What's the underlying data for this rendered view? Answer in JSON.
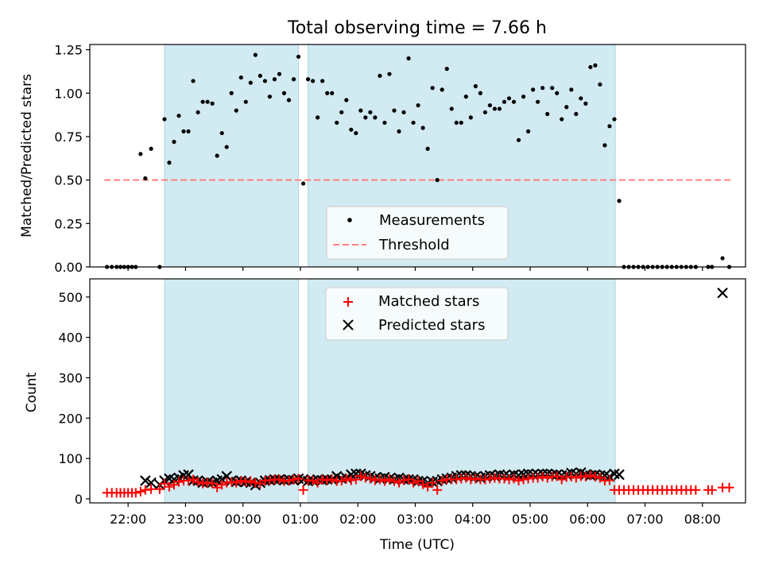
{
  "title": "Total observing time = 7.66 h",
  "xlabel": "Time (UTC)",
  "colors": {
    "shade": "#add8e6",
    "measurement": "#000000",
    "threshold": "#ff7f7f",
    "matched": "#ff0000",
    "predicted": "#000000"
  },
  "chart_data": [
    {
      "type": "scatter",
      "ylabel": "Matched/Predicted stars",
      "ylim": [
        0,
        1.28
      ],
      "yticks": [
        0.0,
        0.25,
        0.5,
        0.75,
        1.0,
        1.25
      ],
      "ytick_labels": [
        "0.00",
        "0.25",
        "0.50",
        "0.75",
        "1.00",
        "1.25"
      ],
      "grid": false,
      "shaded_intervals": [
        [
          "22:38",
          "00:58"
        ],
        [
          "01:08",
          "06:29"
        ]
      ],
      "threshold": {
        "value": 0.5,
        "x_range": [
          "21:35",
          "08:30"
        ]
      },
      "legend": {
        "position": "bottom-center",
        "entries": [
          "Measurements",
          "Threshold"
        ]
      },
      "series": [
        {
          "name": "Measurements",
          "x": [
            "21:38",
            "21:43",
            "21:48",
            "21:52",
            "21:56",
            "22:00",
            "22:04",
            "22:08",
            "22:13",
            "22:18",
            "22:24",
            "22:33",
            "22:38",
            "22:43",
            "22:48",
            "22:53",
            "22:58",
            "23:03",
            "23:08",
            "23:13",
            "23:18",
            "23:23",
            "23:28",
            "23:33",
            "23:38",
            "23:43",
            "23:48",
            "23:53",
            "23:58",
            "00:03",
            "00:08",
            "00:13",
            "00:18",
            "00:23",
            "00:28",
            "00:33",
            "00:38",
            "00:43",
            "00:48",
            "00:53",
            "00:58",
            "01:03",
            "01:08",
            "01:13",
            "01:18",
            "01:23",
            "01:28",
            "01:33",
            "01:38",
            "01:43",
            "01:48",
            "01:53",
            "01:58",
            "02:03",
            "02:08",
            "02:13",
            "02:18",
            "02:23",
            "02:28",
            "02:33",
            "02:38",
            "02:43",
            "02:48",
            "02:53",
            "02:58",
            "03:03",
            "03:08",
            "03:13",
            "03:18",
            "03:23",
            "03:28",
            "03:33",
            "03:38",
            "03:43",
            "03:48",
            "03:53",
            "03:58",
            "04:03",
            "04:08",
            "04:13",
            "04:18",
            "04:23",
            "04:28",
            "04:33",
            "04:38",
            "04:43",
            "04:48",
            "04:53",
            "04:58",
            "05:03",
            "05:08",
            "05:13",
            "05:18",
            "05:23",
            "05:28",
            "05:33",
            "05:38",
            "05:43",
            "05:48",
            "05:53",
            "05:58",
            "06:03",
            "06:08",
            "06:13",
            "06:18",
            "06:23",
            "06:28",
            "06:33",
            "06:38",
            "06:43",
            "06:48",
            "06:53",
            "06:58",
            "07:03",
            "07:08",
            "07:13",
            "07:18",
            "07:23",
            "07:28",
            "07:33",
            "07:38",
            "07:43",
            "07:48",
            "07:53",
            "08:06",
            "08:10",
            "08:21",
            "08:28"
          ],
          "y": [
            0.0,
            0.0,
            0.0,
            0.0,
            0.0,
            0.0,
            0.0,
            0.0,
            0.65,
            0.51,
            0.68,
            0.0,
            0.85,
            0.6,
            0.72,
            0.87,
            0.78,
            0.78,
            1.07,
            0.89,
            0.95,
            0.95,
            0.94,
            0.64,
            0.77,
            0.69,
            1.0,
            0.9,
            1.09,
            0.95,
            1.06,
            1.22,
            1.1,
            1.07,
            0.98,
            1.08,
            1.11,
            1.0,
            0.96,
            1.08,
            1.21,
            0.48,
            1.08,
            1.07,
            0.86,
            1.07,
            1.0,
            1.0,
            0.83,
            0.89,
            0.96,
            0.79,
            0.77,
            0.9,
            0.86,
            0.89,
            0.86,
            1.1,
            0.83,
            1.11,
            0.9,
            0.78,
            0.89,
            1.2,
            0.83,
            0.93,
            0.8,
            0.68,
            1.03,
            0.5,
            1.02,
            1.14,
            0.91,
            0.83,
            0.83,
            0.98,
            0.86,
            1.04,
            1.0,
            0.89,
            0.93,
            0.91,
            0.91,
            0.95,
            0.97,
            0.95,
            0.73,
            0.98,
            0.78,
            1.02,
            0.95,
            1.03,
            0.88,
            1.03,
            1.0,
            0.85,
            0.92,
            1.02,
            0.88,
            0.97,
            0.94,
            1.15,
            1.16,
            1.05,
            0.7,
            0.81,
            0.85,
            0.38,
            0.0,
            0.0,
            0.0,
            0.0,
            0.0,
            0.0,
            0.0,
            0.0,
            0.0,
            0.0,
            0.0,
            0.0,
            0.0,
            0.0,
            0.0,
            0.0,
            0.0,
            0.0,
            0.05,
            0.0
          ]
        }
      ]
    },
    {
      "type": "scatter",
      "ylabel": "Count",
      "ylim": [
        -10,
        545
      ],
      "yticks": [
        0,
        100,
        200,
        300,
        400,
        500
      ],
      "ytick_labels": [
        "0",
        "100",
        "200",
        "300",
        "400",
        "500"
      ],
      "grid": false,
      "shaded_intervals": [
        [
          "22:38",
          "00:58"
        ],
        [
          "01:08",
          "06:29"
        ]
      ],
      "legend": {
        "position": "top-center",
        "entries": [
          "Matched stars",
          "Predicted stars"
        ]
      },
      "series": [
        {
          "name": "Matched stars",
          "x": [
            "21:38",
            "21:43",
            "21:48",
            "21:52",
            "21:56",
            "22:00",
            "22:04",
            "22:08",
            "22:13",
            "22:18",
            "22:24",
            "22:33",
            "22:38",
            "22:43",
            "22:48",
            "22:53",
            "22:58",
            "23:03",
            "23:08",
            "23:13",
            "23:18",
            "23:23",
            "23:28",
            "23:33",
            "23:38",
            "23:43",
            "23:48",
            "23:53",
            "23:58",
            "00:03",
            "00:08",
            "00:13",
            "00:18",
            "00:23",
            "00:28",
            "00:33",
            "00:38",
            "00:43",
            "00:48",
            "00:53",
            "00:58",
            "01:03",
            "01:08",
            "01:13",
            "01:18",
            "01:23",
            "01:28",
            "01:33",
            "01:38",
            "01:43",
            "01:48",
            "01:53",
            "01:58",
            "02:03",
            "02:08",
            "02:13",
            "02:18",
            "02:23",
            "02:28",
            "02:33",
            "02:38",
            "02:43",
            "02:48",
            "02:53",
            "02:58",
            "03:03",
            "03:08",
            "03:13",
            "03:18",
            "03:23",
            "03:28",
            "03:33",
            "03:38",
            "03:43",
            "03:48",
            "03:53",
            "03:58",
            "04:03",
            "04:08",
            "04:13",
            "04:18",
            "04:23",
            "04:28",
            "04:33",
            "04:38",
            "04:43",
            "04:48",
            "04:53",
            "04:58",
            "05:03",
            "05:08",
            "05:13",
            "05:18",
            "05:23",
            "05:28",
            "05:33",
            "05:38",
            "05:43",
            "05:48",
            "05:53",
            "05:58",
            "06:03",
            "06:08",
            "06:13",
            "06:18",
            "06:23",
            "06:28",
            "06:33",
            "06:38",
            "06:43",
            "06:48",
            "06:53",
            "06:58",
            "07:03",
            "07:08",
            "07:13",
            "07:18",
            "07:23",
            "07:28",
            "07:33",
            "07:38",
            "07:43",
            "07:48",
            "07:53",
            "08:06",
            "08:10",
            "08:21",
            "08:28"
          ],
          "y": [
            15,
            15,
            15,
            15,
            15,
            15,
            15,
            15,
            18,
            22,
            24,
            24,
            38,
            30,
            35,
            42,
            45,
            45,
            48,
            42,
            38,
            40,
            38,
            28,
            35,
            40,
            42,
            40,
            45,
            42,
            44,
            40,
            38,
            45,
            46,
            48,
            48,
            44,
            45,
            48,
            50,
            22,
            46,
            45,
            40,
            48,
            46,
            48,
            44,
            45,
            50,
            46,
            48,
            56,
            52,
            50,
            46,
            48,
            44,
            48,
            44,
            40,
            46,
            48,
            40,
            44,
            36,
            30,
            40,
            22,
            45,
            48,
            48,
            48,
            50,
            52,
            48,
            50,
            48,
            48,
            50,
            52,
            50,
            50,
            48,
            50,
            45,
            48,
            50,
            52,
            52,
            55,
            52,
            55,
            56,
            48,
            54,
            55,
            52,
            56,
            55,
            58,
            55,
            52,
            45,
            46,
            22,
            22,
            22,
            22,
            22,
            22,
            22,
            22,
            22,
            22,
            22,
            22,
            22,
            22,
            22,
            22,
            22,
            22,
            22,
            22,
            28,
            28
          ]
        },
        {
          "name": "Predicted stars",
          "x": [
            "22:18",
            "22:24",
            "22:33",
            "22:38",
            "22:43",
            "22:48",
            "22:53",
            "22:58",
            "23:03",
            "23:08",
            "23:13",
            "23:18",
            "23:23",
            "23:28",
            "23:33",
            "23:38",
            "23:43",
            "23:48",
            "23:53",
            "23:58",
            "00:03",
            "00:08",
            "00:13",
            "00:18",
            "00:23",
            "00:28",
            "00:33",
            "00:38",
            "00:43",
            "00:48",
            "00:53",
            "00:58",
            "01:03",
            "01:08",
            "01:13",
            "01:18",
            "01:23",
            "01:28",
            "01:33",
            "01:38",
            "01:43",
            "01:48",
            "01:53",
            "01:58",
            "02:03",
            "02:08",
            "02:13",
            "02:18",
            "02:23",
            "02:28",
            "02:33",
            "02:38",
            "02:43",
            "02:48",
            "02:53",
            "02:58",
            "03:03",
            "03:08",
            "03:13",
            "03:18",
            "03:23",
            "03:28",
            "03:33",
            "03:38",
            "03:43",
            "03:48",
            "03:53",
            "03:58",
            "04:03",
            "04:08",
            "04:13",
            "04:18",
            "04:23",
            "04:28",
            "04:33",
            "04:38",
            "04:43",
            "04:48",
            "04:53",
            "04:58",
            "05:03",
            "05:08",
            "05:13",
            "05:18",
            "05:23",
            "05:28",
            "05:33",
            "05:38",
            "05:43",
            "05:48",
            "05:53",
            "05:58",
            "06:03",
            "06:08",
            "06:13",
            "06:18",
            "06:23",
            "06:28",
            "06:33",
            "08:21"
          ],
          "y": [
            45,
            40,
            35,
            45,
            50,
            48,
            52,
            58,
            60,
            45,
            45,
            40,
            42,
            40,
            45,
            48,
            56,
            45,
            42,
            45,
            42,
            40,
            34,
            40,
            45,
            46,
            48,
            48,
            46,
            48,
            46,
            50,
            48,
            44,
            45,
            48,
            46,
            48,
            48,
            56,
            50,
            52,
            60,
            62,
            62,
            58,
            56,
            52,
            50,
            54,
            50,
            48,
            52,
            48,
            48,
            48,
            44,
            44,
            40,
            42,
            44,
            48,
            50,
            52,
            56,
            58,
            58,
            56,
            55,
            52,
            56,
            58,
            56,
            60,
            58,
            56,
            60,
            58,
            60,
            62,
            60,
            60,
            62,
            62,
            60,
            60,
            58,
            60,
            64,
            62,
            65,
            60,
            58,
            60,
            58,
            58,
            55,
            62,
            60,
            510
          ]
        }
      ]
    }
  ],
  "xaxis": {
    "tick_labels": [
      "22:00",
      "23:00",
      "00:00",
      "01:00",
      "02:00",
      "03:00",
      "04:00",
      "05:00",
      "06:00",
      "07:00",
      "08:00"
    ],
    "range_start": "21:20",
    "range_end": "08:45"
  }
}
